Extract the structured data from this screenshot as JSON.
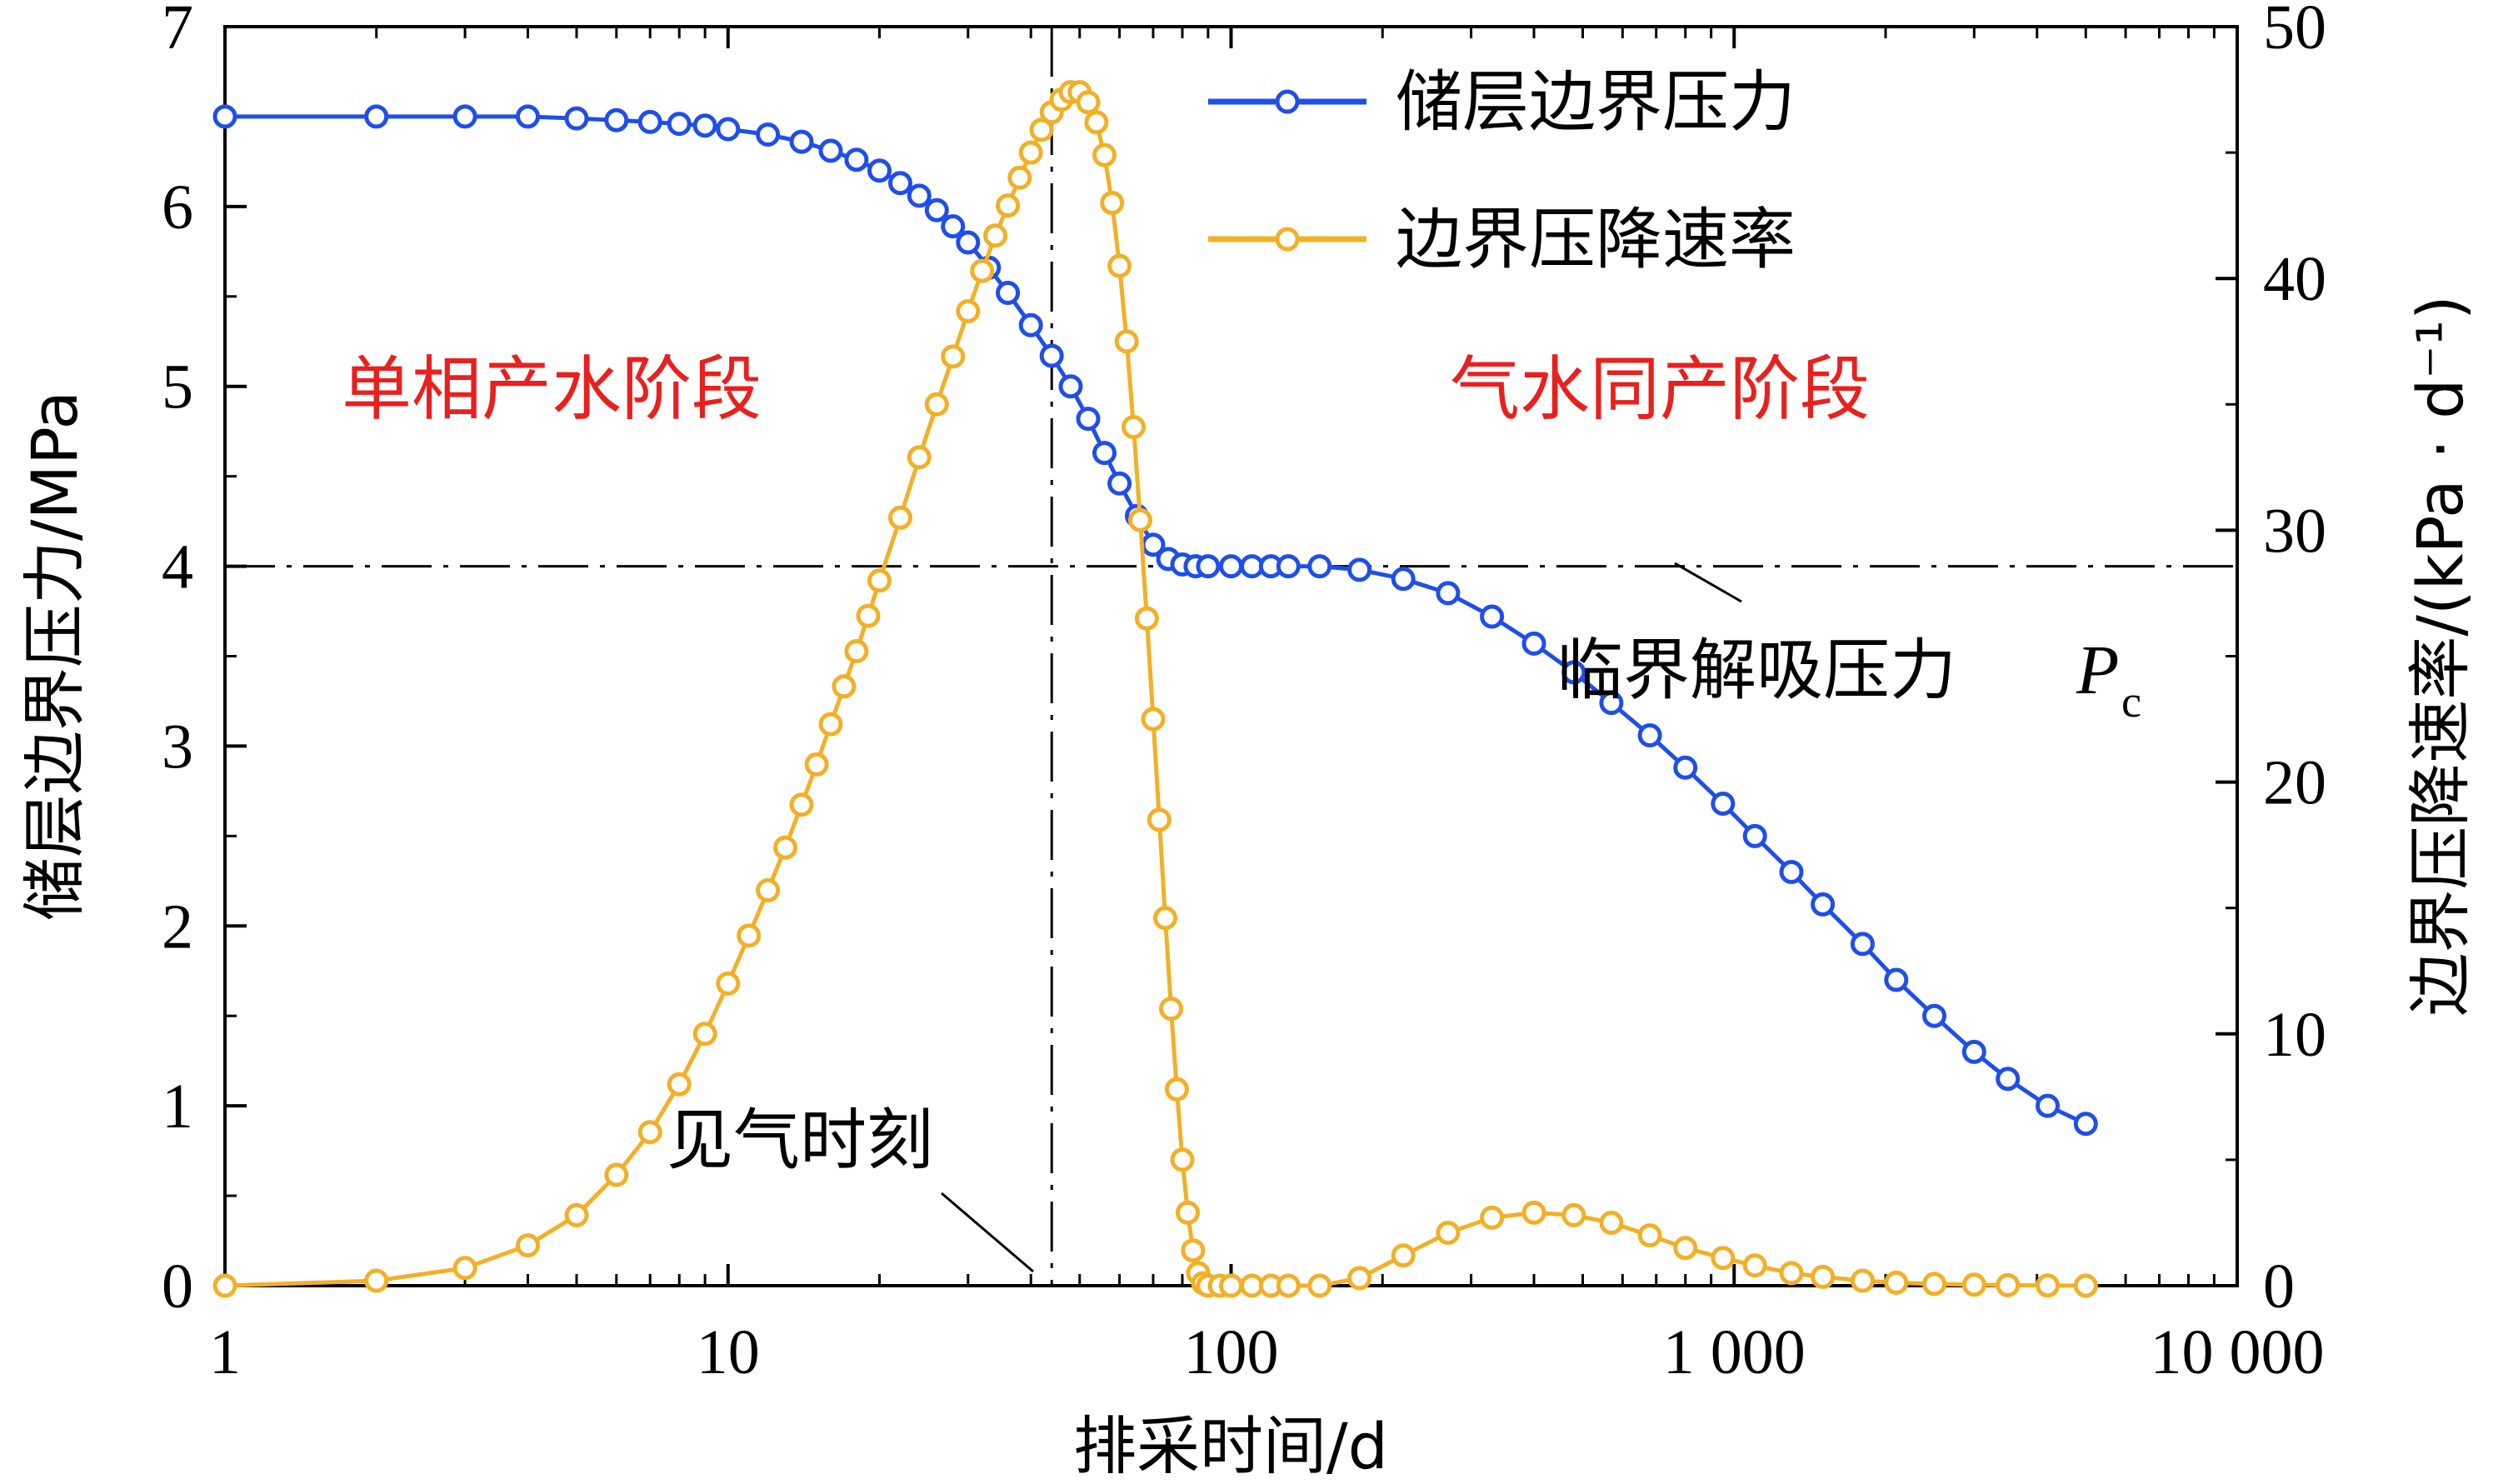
{
  "chart_data": {
    "type": "line",
    "xscale": "log",
    "xlim": [
      1,
      10000
    ],
    "ylim_left": [
      0,
      7
    ],
    "ylim_right": [
      0,
      50
    ],
    "xlabel": "排采时间/d",
    "ylabel_left": "储层边界压力/MPa",
    "ylabel_right": "边界压降速率/(kPa · d⁻¹)",
    "x_tick_labels": [
      "1",
      "10",
      "100",
      "1 000",
      "10 000"
    ],
    "y_left_tick_labels": [
      "0",
      "1",
      "2",
      "3",
      "4",
      "5",
      "6",
      "7"
    ],
    "y_right_tick_labels": [
      "0",
      "10",
      "20",
      "30",
      "40",
      "50"
    ],
    "legend_placement": "top-right",
    "grid": false,
    "series": [
      {
        "name": "储层边界压力",
        "axis": "left",
        "color": "#1f4fe8",
        "x": [
          1,
          2,
          3,
          4,
          5,
          6,
          7,
          8,
          9,
          10,
          12,
          14,
          16,
          18,
          20,
          22,
          24,
          26,
          28,
          30,
          33,
          36,
          40,
          44,
          48,
          52,
          56,
          60,
          65,
          70,
          75,
          80,
          85,
          90,
          100,
          110,
          120,
          130,
          150,
          180,
          220,
          270,
          330,
          400,
          480,
          570,
          680,
          800,
          950,
          1100,
          1300,
          1500,
          1800,
          2100,
          2500,
          3000,
          3500,
          4200,
          5000
        ],
        "y": [
          6.5,
          6.5,
          6.5,
          6.5,
          6.49,
          6.48,
          6.47,
          6.46,
          6.45,
          6.43,
          6.4,
          6.36,
          6.31,
          6.26,
          6.2,
          6.13,
          6.06,
          5.98,
          5.89,
          5.8,
          5.66,
          5.52,
          5.34,
          5.17,
          5.0,
          4.82,
          4.63,
          4.46,
          4.28,
          4.12,
          4.04,
          4.01,
          4.0,
          4.0,
          4.0,
          4.0,
          4.0,
          4.0,
          4.0,
          3.98,
          3.93,
          3.85,
          3.72,
          3.57,
          3.41,
          3.24,
          3.06,
          2.88,
          2.68,
          2.5,
          2.3,
          2.12,
          1.9,
          1.7,
          1.5,
          1.3,
          1.15,
          1.0,
          0.9
        ]
      },
      {
        "name": "边界压降速率",
        "axis": "right",
        "color": "#f2b027",
        "x": [
          1,
          2,
          3,
          4,
          5,
          6,
          7,
          8,
          9,
          10,
          11,
          12,
          13,
          14,
          15,
          16,
          17,
          18,
          19,
          20,
          22,
          24,
          26,
          28,
          30,
          32,
          34,
          36,
          38,
          40,
          42,
          44,
          46,
          48,
          50,
          52,
          54,
          56,
          58,
          60,
          62,
          64,
          66,
          68,
          70,
          72,
          74,
          76,
          78,
          80,
          82,
          84,
          86,
          88,
          90,
          95,
          100,
          110,
          120,
          130,
          150,
          180,
          220,
          270,
          330,
          400,
          480,
          570,
          680,
          800,
          950,
          1100,
          1300,
          1500,
          1800,
          2100,
          2500,
          3000,
          3500,
          4200,
          5000
        ],
        "y": [
          0,
          0.2,
          0.7,
          1.6,
          2.8,
          4.4,
          6.1,
          8.0,
          10.0,
          12.0,
          13.9,
          15.7,
          17.4,
          19.1,
          20.7,
          22.3,
          23.8,
          25.2,
          26.6,
          28.0,
          30.5,
          32.9,
          35.0,
          36.9,
          38.7,
          40.3,
          41.7,
          42.9,
          44.0,
          45.0,
          45.9,
          46.6,
          47.1,
          47.4,
          47.4,
          47.0,
          46.2,
          44.9,
          43.0,
          40.5,
          37.5,
          34.1,
          30.4,
          26.5,
          22.5,
          18.5,
          14.6,
          11.0,
          7.8,
          5.0,
          2.9,
          1.4,
          0.5,
          0.1,
          0,
          0,
          0,
          0,
          0,
          0,
          0,
          0.3,
          1.2,
          2.1,
          2.7,
          2.9,
          2.8,
          2.5,
          2.0,
          1.5,
          1.1,
          0.8,
          0.5,
          0.35,
          0.2,
          0.12,
          0.07,
          0.04,
          0.02,
          0.01,
          0
        ]
      }
    ],
    "annotations": {
      "stage_single": "单相产水阶段",
      "stage_two": "气水同产阶段",
      "gas_breakthrough": "见气时刻",
      "critical_pressure": "临界解吸压力",
      "critical_symbol": "P",
      "critical_subscript": "c"
    },
    "reference_lines": {
      "critical_pressure_mpa": 4.0,
      "gas_breakthrough_day": 44
    }
  }
}
